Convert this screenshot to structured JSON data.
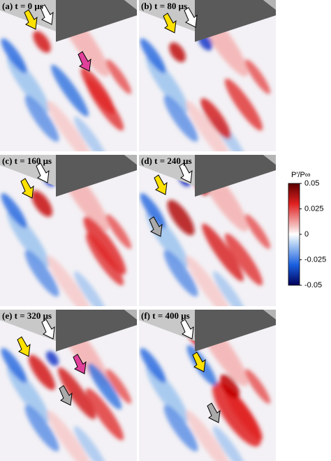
{
  "panels": [
    {
      "label": "(a) t = 0 μs"
    },
    {
      "label": "(b) t = 80 μs"
    },
    {
      "label": "(c) t = 160 μs"
    },
    {
      "label": "(d) t = 240 μs"
    },
    {
      "label": "(e) t = 320 μs"
    },
    {
      "label": "(f) t = 400 μs"
    }
  ],
  "colorbar": {
    "title": "P′/P∞",
    "lim": [
      -0.05,
      0.05
    ],
    "ticks": [
      0.05,
      0.025,
      0,
      -0.025,
      -0.05
    ]
  }
}
